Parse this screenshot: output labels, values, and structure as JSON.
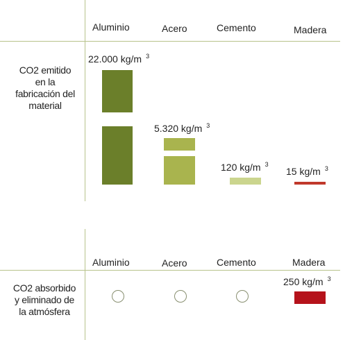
{
  "chart_data": [
    {
      "type": "bar",
      "row_label": "CO2 emitido en la fabricación del material",
      "categories": [
        "Aluminio",
        "Acero",
        "Cemento",
        "Madera"
      ],
      "values": [
        22000,
        5320,
        120,
        15
      ],
      "value_labels": [
        "22.000 kg/m",
        "5.320 kg/m",
        "120 kg/m",
        "15 kg/m"
      ],
      "unit_superscript": "3",
      "colors": [
        "#6b7f2a",
        "#a9b44e",
        "#cbd58e",
        "#c0392b"
      ],
      "axis_break": true
    },
    {
      "type": "bar",
      "row_label": "CO2 absorbido y eliminado de la atmósfera",
      "categories": [
        "Aluminio",
        "Acero",
        "Cemento",
        "Madera"
      ],
      "values": [
        0,
        0,
        0,
        250
      ],
      "value_labels": [
        "",
        "",
        "",
        "250 kg/m"
      ],
      "unit_superscript": "3",
      "empty_marker": "circle",
      "colors": [
        "#ffffff",
        "#ffffff",
        "#ffffff",
        "#b5121b"
      ]
    }
  ],
  "labels": {
    "row1": [
      "CO2 emitido",
      "en la",
      "fabricación del",
      "material"
    ],
    "row2": [
      "CO2 absorbido",
      "y eliminado de",
      "la atmósfera"
    ]
  }
}
